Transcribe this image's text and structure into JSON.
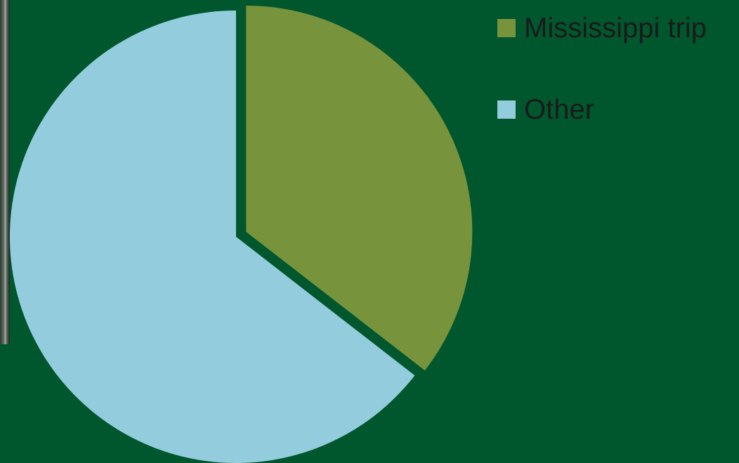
{
  "chart_data": {
    "type": "pie",
    "title": "",
    "start_angle_deg": 0,
    "direction": "clockwise",
    "exploded_slice": 0,
    "legend_position": "right",
    "slices": [
      {
        "label": "Mississippi trip",
        "value": 35.5,
        "color": "#77933C"
      },
      {
        "label": "Other",
        "value": 64.5,
        "color": "#93CDDD"
      }
    ]
  },
  "background_color": "#00572D",
  "legend": {
    "items": [
      {
        "label": "Mississippi trip",
        "color": "#77933C"
      },
      {
        "label": "Other",
        "color": "#93CDDD"
      }
    ]
  }
}
